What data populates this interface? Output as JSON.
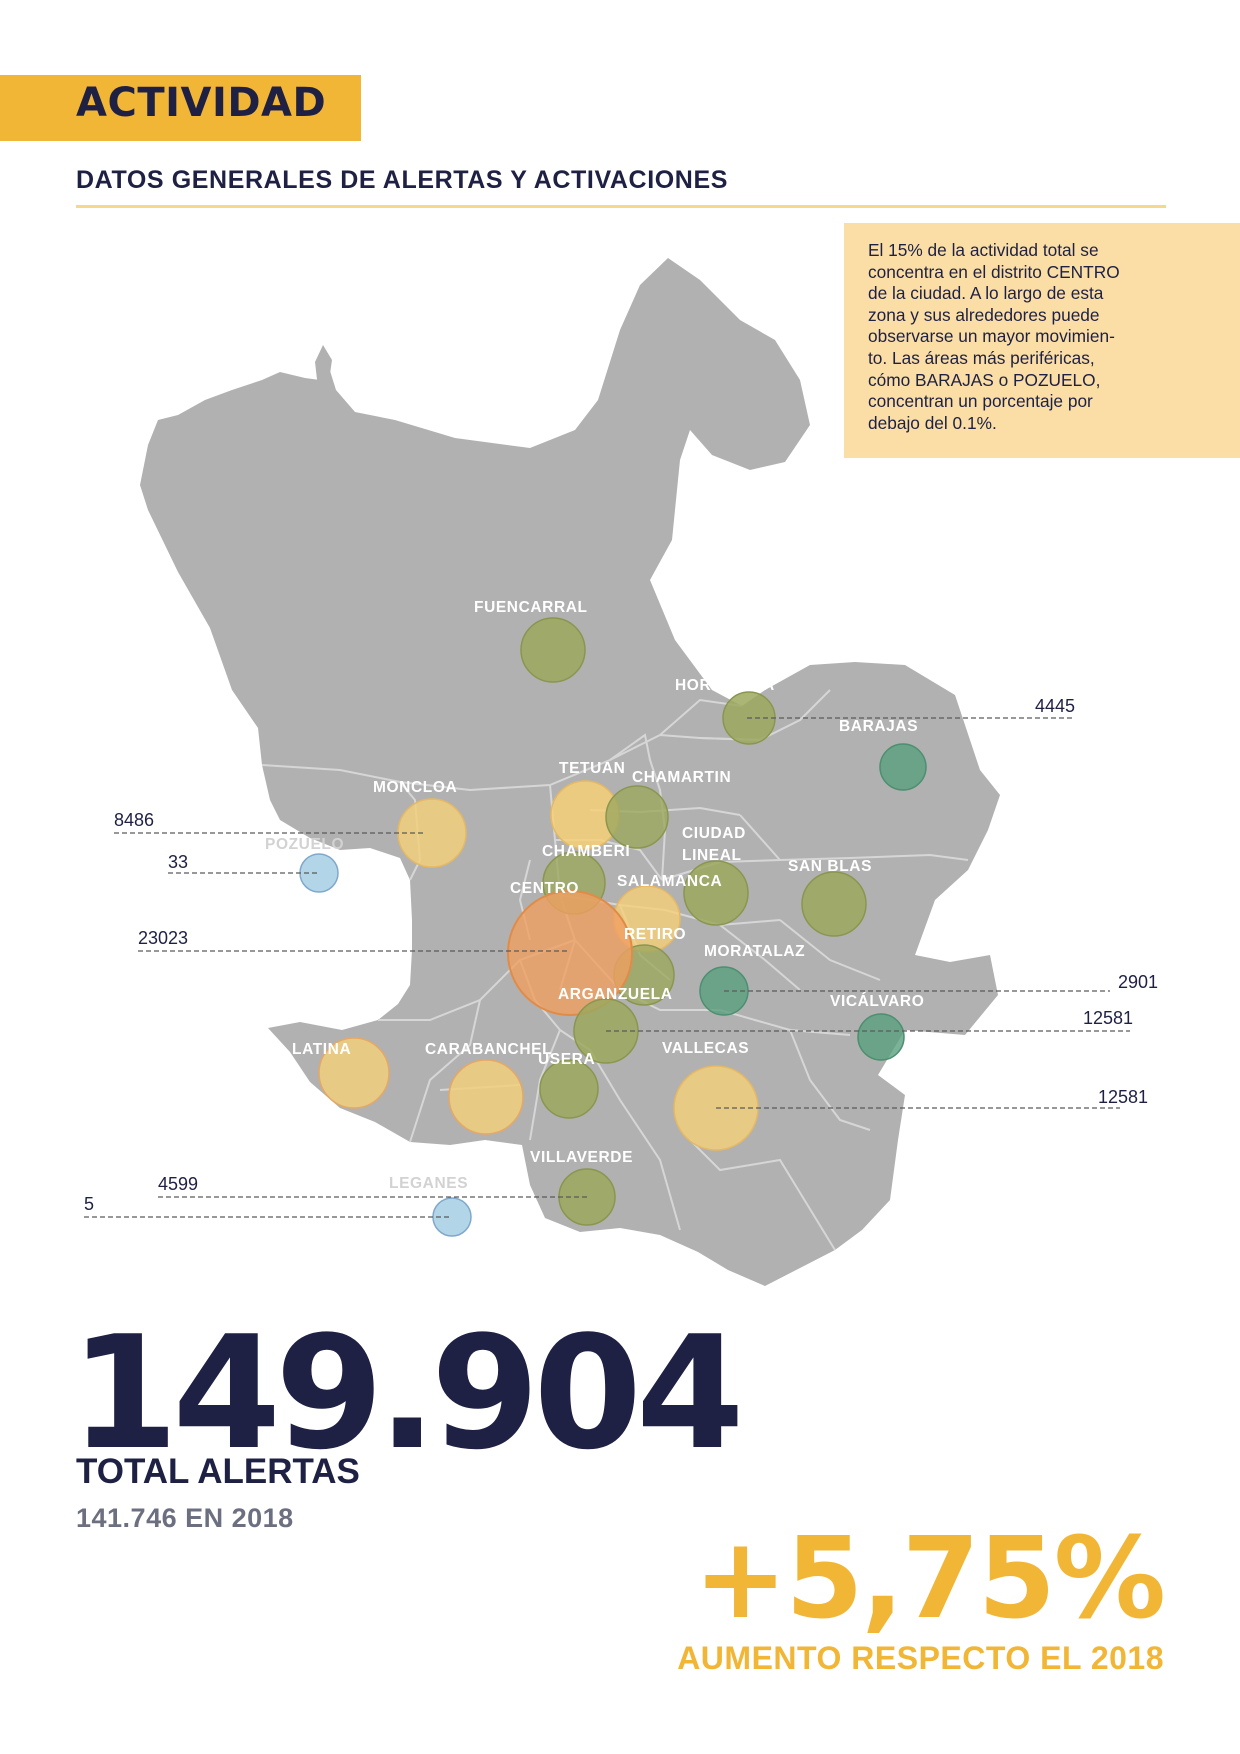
{
  "header": {
    "title": "ACTIVIDAD",
    "subtitle": "DATOS GENERALES DE ALERTAS Y ACTIVACIONES"
  },
  "note": {
    "lines": [
      "El 15% de la actividad total se",
      "concentra en el distrito CENTRO",
      "de la ciudad. A lo largo de esta",
      "zona y sus alrededores puede",
      "observarse un mayor movimien-",
      "to. Las áreas más periféricas,",
      "cómo BARAJAS o POZUELO,",
      "concentran un porcentaje por",
      "debajo del 0.1%."
    ]
  },
  "map": {
    "districts": [
      {
        "label": "FUENCARRAL",
        "color": "#9ca85e"
      },
      {
        "label": "HORTALEZA",
        "color": "#9ca85e"
      },
      {
        "label": "BARAJAS",
        "color": "#5aa07f"
      },
      {
        "label": "TETUAN",
        "color": "#f6d078"
      },
      {
        "label": "CHAMARTIN",
        "color": "#9ca85e"
      },
      {
        "label": "MONCLOA",
        "color": "#f1cf7c"
      },
      {
        "label": "POZUELO",
        "color": "#aad1e4"
      },
      {
        "label": "CHAMBERI",
        "color": "#9ca85e"
      },
      {
        "label": "CIUDAD LINEAL",
        "color": "#9ca85e"
      },
      {
        "label": "SAN BLAS",
        "color": "#9ca85e"
      },
      {
        "label": "CENTRO",
        "color": "#f0a060"
      },
      {
        "label": "SALAMANCA",
        "color": "#f6d078"
      },
      {
        "label": "RETIRO",
        "color": "#9ca85e"
      },
      {
        "label": "MORATALAZ",
        "color": "#5aa07f"
      },
      {
        "label": "ARGANZUELA",
        "color": "#9ca85e"
      },
      {
        "label": "VICÁLVARO",
        "color": "#5aa07f"
      },
      {
        "label": "LATINA",
        "color": "#f1cf7c"
      },
      {
        "label": "CARABANCHEL",
        "color": "#f1cf7c"
      },
      {
        "label": "USERA",
        "color": "#9ca85e"
      },
      {
        "label": "VALLECAS",
        "color": "#f1cf7c"
      },
      {
        "label": "VILLAVERDE",
        "color": "#9ca85e"
      },
      {
        "label": "LEGANES",
        "color": "#aad1e4"
      }
    ],
    "callouts": [
      "4445",
      "8486",
      "33",
      "23023",
      "2901",
      "12581",
      "12581",
      "4599",
      "5"
    ]
  },
  "stats": {
    "total": "149.904",
    "total_label": "TOTAL ALERTAS",
    "previous": "141.746 EN 2018",
    "change": "+5,75%",
    "change_label": "AUMENTO RESPECTO EL 2018"
  },
  "colors": {
    "accent": "#f2b637",
    "navy": "#1e2044",
    "map_fill": "#b1b1b1",
    "note_bg": "#fadea6"
  }
}
